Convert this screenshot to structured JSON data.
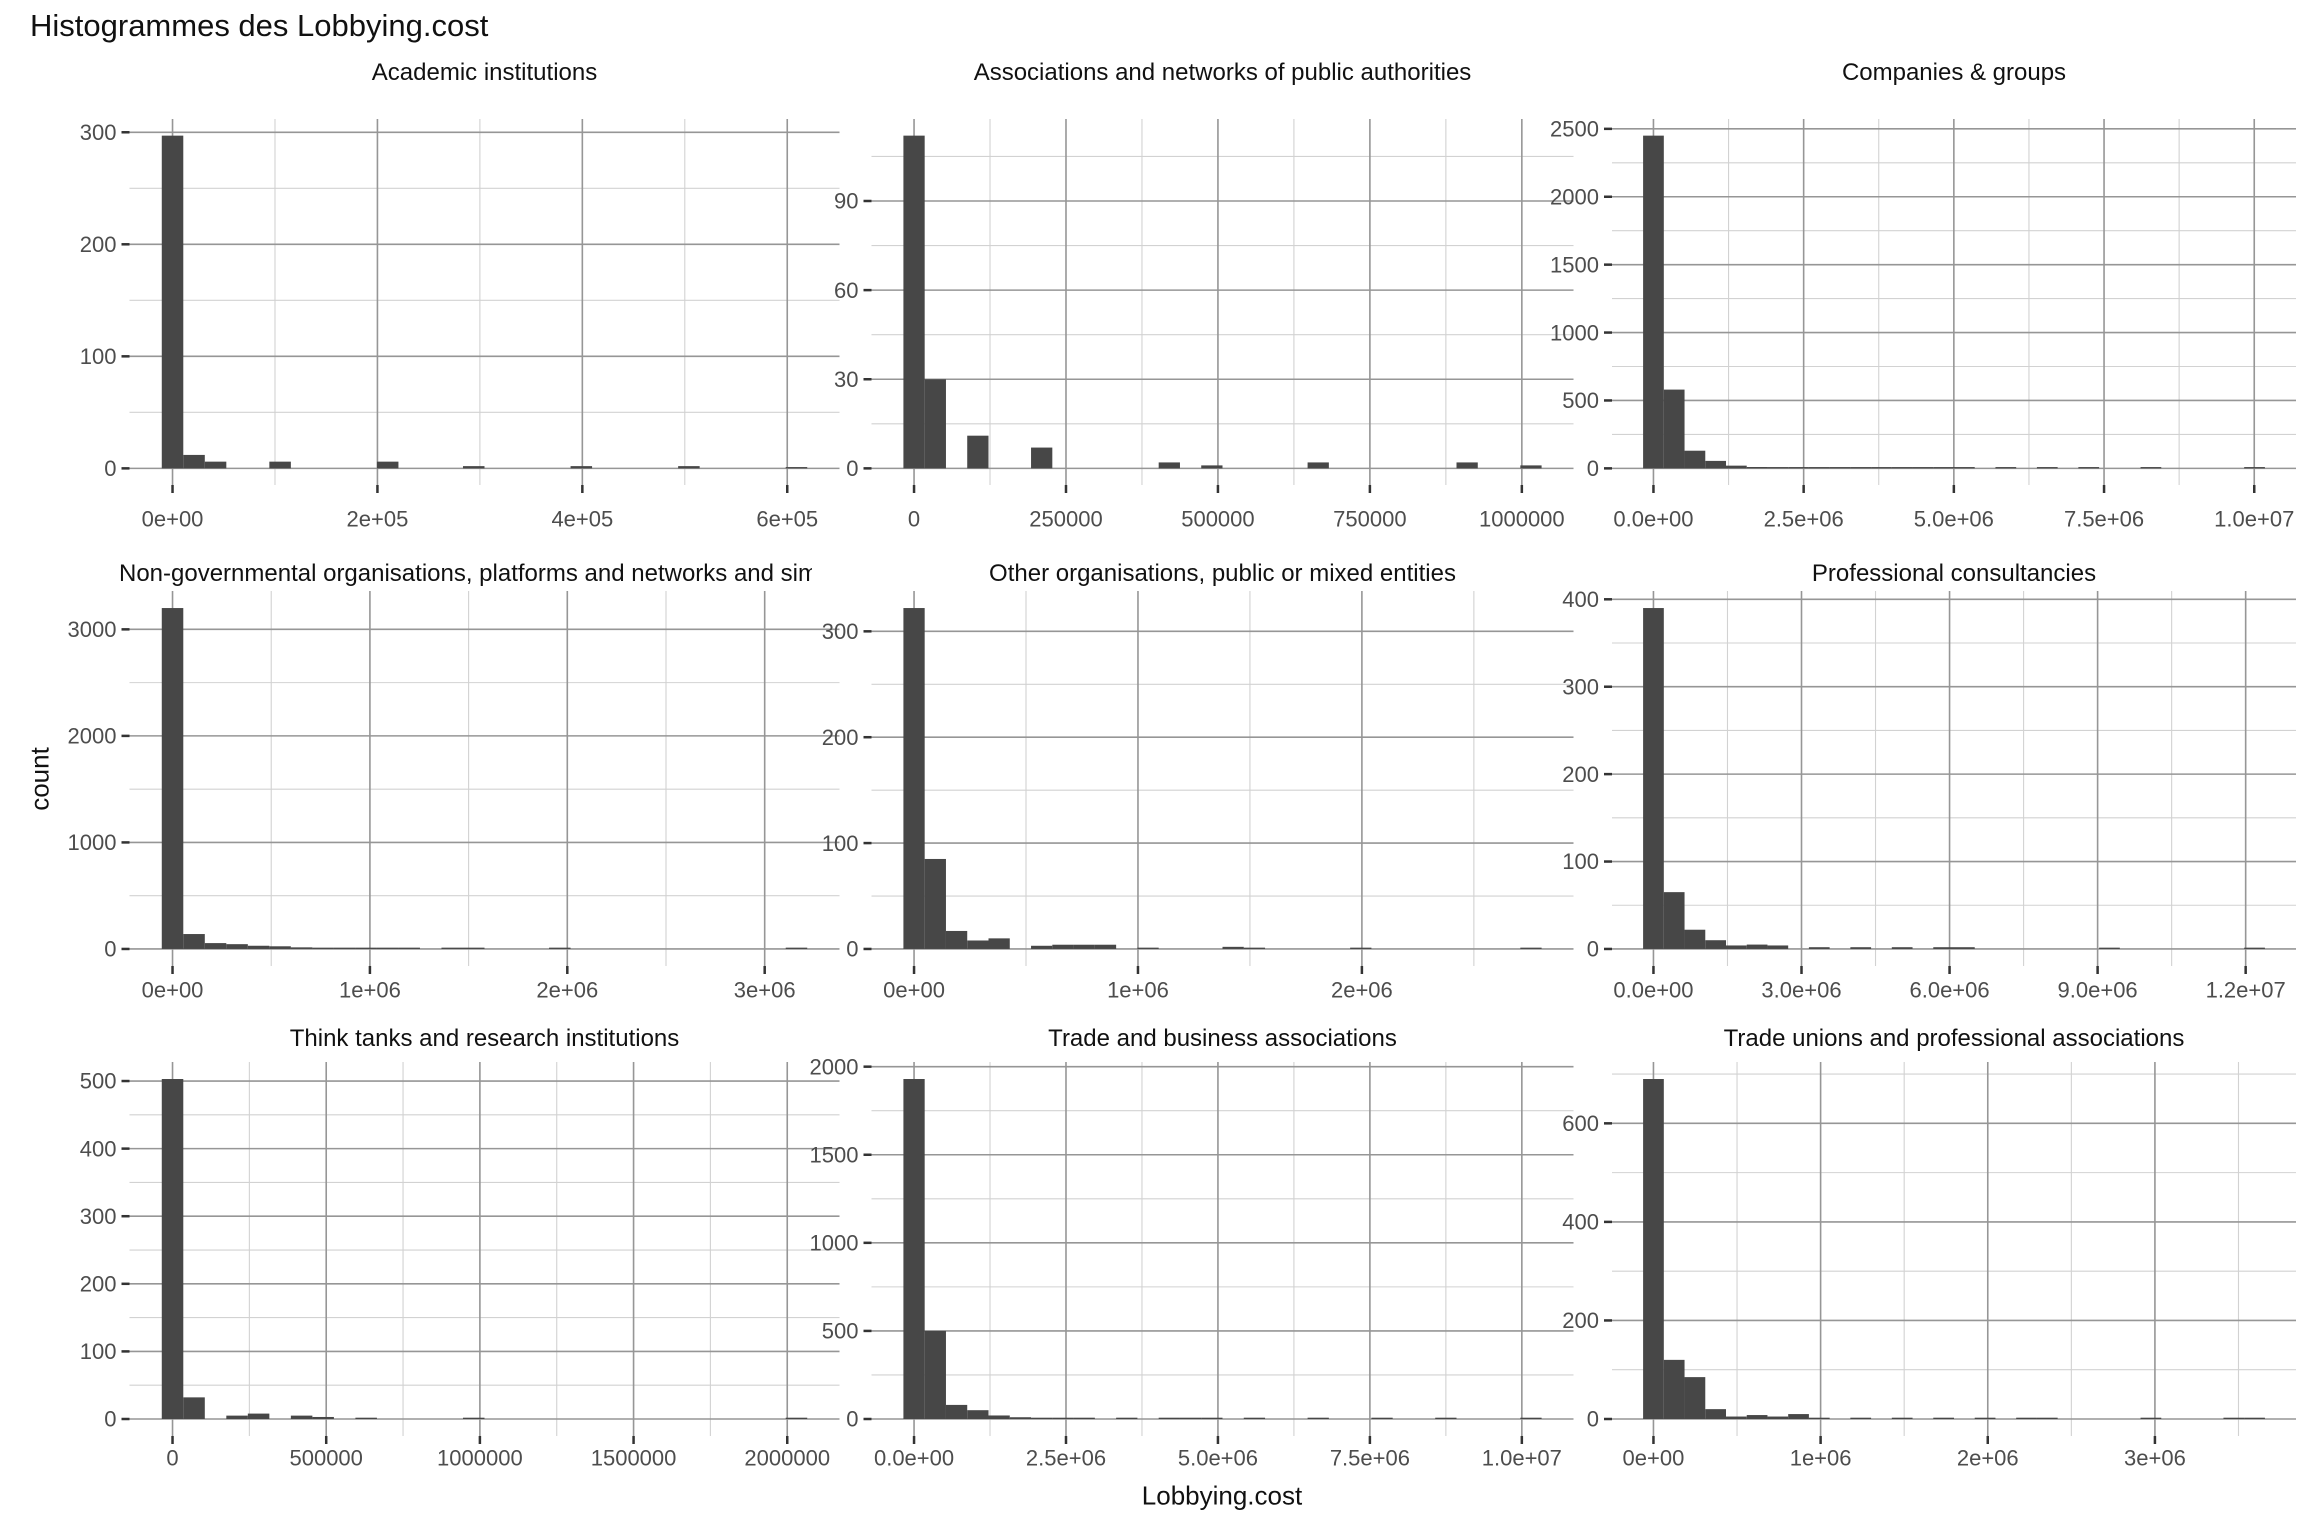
{
  "page_title": "Histogrammes des Lobbying.cost",
  "axis": {
    "x_title": "Lobbying.cost",
    "y_title": "count"
  },
  "colors": {
    "background": "#ffffff",
    "bar": "#474747",
    "grid_major": "#969696",
    "grid_minor": "#d2d2d2",
    "tick_mark": "#333333",
    "tick_label": "#4d4d4d",
    "title": "#111111"
  },
  "chart_data": [
    {
      "type": "bar",
      "subtype": "histogram",
      "title": "Academic institutions",
      "ylabel": "count",
      "xlabel": "Lobbying.cost",
      "grid": true,
      "legend": false,
      "binwidth": 21000,
      "yticks": [
        0,
        100,
        200,
        300
      ],
      "xticks": [
        {
          "label": "0e+00",
          "value": 0
        },
        {
          "label": "2e+05",
          "value": 200000
        },
        {
          "label": "4e+05",
          "value": 400000
        },
        {
          "label": "6e+05",
          "value": 600000
        }
      ],
      "bins": [
        [
          0,
          297
        ],
        [
          1,
          12
        ],
        [
          2,
          6
        ],
        [
          5,
          6
        ],
        [
          10,
          6
        ],
        [
          14,
          2
        ],
        [
          19,
          2
        ],
        [
          24,
          2
        ],
        [
          29,
          1
        ]
      ]
    },
    {
      "type": "bar",
      "subtype": "histogram",
      "title": "Associations and networks of public authorities",
      "ylabel": "count",
      "xlabel": "Lobbying.cost",
      "grid": true,
      "legend": false,
      "binwidth": 35000,
      "yticks": [
        0,
        30,
        60,
        90
      ],
      "xticks": [
        {
          "label": "0",
          "value": 0
        },
        {
          "label": "250000",
          "value": 250000
        },
        {
          "label": "500000",
          "value": 500000
        },
        {
          "label": "750000",
          "value": 750000
        },
        {
          "label": "1000000",
          "value": 1000000
        }
      ],
      "bins": [
        [
          0,
          112
        ],
        [
          1,
          30
        ],
        [
          3,
          11
        ],
        [
          6,
          7
        ],
        [
          12,
          2
        ],
        [
          14,
          1
        ],
        [
          19,
          2
        ],
        [
          26,
          2
        ],
        [
          29,
          1
        ]
      ]
    },
    {
      "type": "bar",
      "subtype": "histogram",
      "title": "Companies & groups",
      "ylabel": "count",
      "xlabel": "Lobbying.cost",
      "grid": true,
      "legend": false,
      "binwidth": 345000,
      "yticks": [
        0,
        500,
        1000,
        1500,
        2000,
        2500
      ],
      "xticks": [
        {
          "label": "0.0e+00",
          "value": 0
        },
        {
          "label": "2.5e+06",
          "value": 2500000
        },
        {
          "label": "5.0e+06",
          "value": 5000000
        },
        {
          "label": "7.5e+06",
          "value": 7500000
        },
        {
          "label": "1.0e+07",
          "value": 10000000
        }
      ],
      "bins": [
        [
          0,
          2450
        ],
        [
          1,
          580
        ],
        [
          2,
          130
        ],
        [
          3,
          55
        ],
        [
          4,
          20
        ],
        [
          5,
          10
        ],
        [
          6,
          8
        ],
        [
          7,
          8
        ],
        [
          8,
          4
        ],
        [
          9,
          3
        ],
        [
          10,
          2
        ],
        [
          11,
          2
        ],
        [
          12,
          2
        ],
        [
          13,
          1
        ],
        [
          14,
          1
        ],
        [
          15,
          1
        ],
        [
          17,
          1
        ],
        [
          19,
          1
        ],
        [
          21,
          1
        ],
        [
          24,
          1
        ],
        [
          29,
          1
        ]
      ]
    },
    {
      "type": "bar",
      "subtype": "histogram",
      "title": "Non-governmental organisations, platforms and networks and similar",
      "ylabel": "count",
      "xlabel": "Lobbying.cost",
      "grid": true,
      "legend": false,
      "binwidth": 109000,
      "yticks": [
        0,
        1000,
        2000,
        3000
      ],
      "xticks": [
        {
          "label": "0e+00",
          "value": 0
        },
        {
          "label": "1e+06",
          "value": 1000000
        },
        {
          "label": "2e+06",
          "value": 2000000
        },
        {
          "label": "3e+06",
          "value": 3000000
        }
      ],
      "bins": [
        [
          0,
          3200
        ],
        [
          1,
          140
        ],
        [
          2,
          55
        ],
        [
          3,
          45
        ],
        [
          4,
          30
        ],
        [
          5,
          25
        ],
        [
          6,
          15
        ],
        [
          7,
          8
        ],
        [
          8,
          5
        ],
        [
          9,
          3
        ],
        [
          10,
          2
        ],
        [
          11,
          2
        ],
        [
          13,
          1
        ],
        [
          14,
          1
        ],
        [
          18,
          1
        ],
        [
          29,
          1
        ]
      ]
    },
    {
      "type": "bar",
      "subtype": "histogram",
      "title": "Other organisations, public or mixed entities",
      "ylabel": "count",
      "xlabel": "Lobbying.cost",
      "grid": true,
      "legend": false,
      "binwidth": 95000,
      "yticks": [
        0,
        100,
        200,
        300
      ],
      "xticks": [
        {
          "label": "0e+00",
          "value": 0
        },
        {
          "label": "1e+06",
          "value": 1000000
        },
        {
          "label": "2e+06",
          "value": 2000000
        }
      ],
      "bins": [
        [
          0,
          322
        ],
        [
          1,
          85
        ],
        [
          2,
          17
        ],
        [
          3,
          8
        ],
        [
          4,
          10
        ],
        [
          6,
          3
        ],
        [
          7,
          4
        ],
        [
          8,
          4
        ],
        [
          9,
          4
        ],
        [
          11,
          1
        ],
        [
          15,
          2
        ],
        [
          16,
          1
        ],
        [
          21,
          1
        ],
        [
          29,
          1
        ]
      ]
    },
    {
      "type": "bar",
      "subtype": "histogram",
      "title": "Professional consultancies",
      "ylabel": "count",
      "xlabel": "Lobbying.cost",
      "grid": true,
      "legend": false,
      "binwidth": 420000,
      "yticks": [
        0,
        100,
        200,
        300,
        400
      ],
      "xticks": [
        {
          "label": "0.0e+00",
          "value": 0
        },
        {
          "label": "3.0e+06",
          "value": 3000000
        },
        {
          "label": "6.0e+06",
          "value": 6000000
        },
        {
          "label": "9.0e+06",
          "value": 9000000
        },
        {
          "label": "1.2e+07",
          "value": 12000000
        }
      ],
      "bins": [
        [
          0,
          390
        ],
        [
          1,
          65
        ],
        [
          2,
          22
        ],
        [
          3,
          10
        ],
        [
          4,
          4
        ],
        [
          5,
          5
        ],
        [
          6,
          4
        ],
        [
          8,
          2
        ],
        [
          10,
          2
        ],
        [
          12,
          2
        ],
        [
          14,
          2
        ],
        [
          15,
          2
        ],
        [
          22,
          1
        ],
        [
          29,
          1
        ]
      ]
    },
    {
      "type": "bar",
      "subtype": "histogram",
      "title": "Think tanks and research institutions",
      "ylabel": "count",
      "xlabel": "Lobbying.cost",
      "grid": true,
      "legend": false,
      "binwidth": 70000,
      "yticks": [
        0,
        100,
        200,
        300,
        400,
        500
      ],
      "xticks": [
        {
          "label": "0",
          "value": 0
        },
        {
          "label": "500000",
          "value": 500000
        },
        {
          "label": "1000000",
          "value": 1000000
        },
        {
          "label": "1500000",
          "value": 1500000
        },
        {
          "label": "2000000",
          "value": 2000000
        }
      ],
      "bins": [
        [
          0,
          503
        ],
        [
          1,
          32
        ],
        [
          3,
          5
        ],
        [
          4,
          8
        ],
        [
          6,
          5
        ],
        [
          7,
          3
        ],
        [
          9,
          1
        ],
        [
          14,
          1
        ],
        [
          29,
          1
        ]
      ]
    },
    {
      "type": "bar",
      "subtype": "histogram",
      "title": "Trade and business associations",
      "ylabel": "count",
      "xlabel": "Lobbying.cost",
      "grid": true,
      "legend": false,
      "binwidth": 350000,
      "yticks": [
        0,
        500,
        1000,
        1500,
        2000
      ],
      "xticks": [
        {
          "label": "0.0e+00",
          "value": 0
        },
        {
          "label": "2.5e+06",
          "value": 2500000
        },
        {
          "label": "5.0e+06",
          "value": 5000000
        },
        {
          "label": "7.5e+06",
          "value": 7500000
        },
        {
          "label": "1.0e+07",
          "value": 10000000
        }
      ],
      "bins": [
        [
          0,
          1930
        ],
        [
          1,
          500
        ],
        [
          2,
          80
        ],
        [
          3,
          50
        ],
        [
          4,
          20
        ],
        [
          5,
          10
        ],
        [
          6,
          5
        ],
        [
          7,
          5
        ],
        [
          8,
          3
        ],
        [
          10,
          2
        ],
        [
          12,
          2
        ],
        [
          13,
          2
        ],
        [
          14,
          1
        ],
        [
          16,
          1
        ],
        [
          19,
          1
        ],
        [
          22,
          1
        ],
        [
          25,
          1
        ],
        [
          29,
          1
        ]
      ]
    },
    {
      "type": "bar",
      "subtype": "histogram",
      "title": "Trade unions and professional associations",
      "ylabel": "count",
      "xlabel": "Lobbying.cost",
      "grid": true,
      "legend": false,
      "binwidth": 124000,
      "yticks": [
        0,
        200,
        400,
        600
      ],
      "xticks": [
        {
          "label": "0e+00",
          "value": 0
        },
        {
          "label": "1e+06",
          "value": 1000000
        },
        {
          "label": "2e+06",
          "value": 2000000
        },
        {
          "label": "3e+06",
          "value": 3000000
        }
      ],
      "bins": [
        [
          0,
          690
        ],
        [
          1,
          120
        ],
        [
          2,
          85
        ],
        [
          3,
          20
        ],
        [
          4,
          5
        ],
        [
          5,
          8
        ],
        [
          6,
          5
        ],
        [
          7,
          10
        ],
        [
          8,
          2
        ],
        [
          10,
          1
        ],
        [
          12,
          1
        ],
        [
          14,
          1
        ],
        [
          16,
          1
        ],
        [
          18,
          1
        ],
        [
          19,
          1
        ],
        [
          24,
          1
        ],
        [
          28,
          1
        ],
        [
          29,
          1
        ]
      ]
    }
  ]
}
